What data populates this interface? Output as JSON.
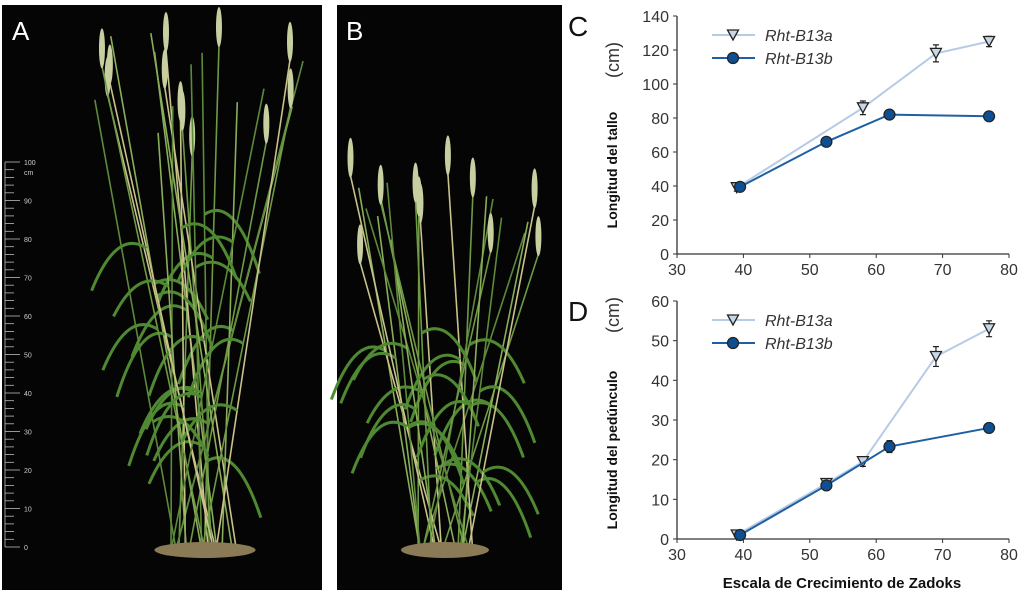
{
  "photos": [
    {
      "label": "A",
      "ruler_unit": "cm",
      "ruler_ticks": [
        0,
        10,
        20,
        30,
        40,
        50,
        60,
        70,
        80,
        90,
        100
      ]
    },
    {
      "label": "B"
    }
  ],
  "colors": {
    "series_a": "#b5cbe6",
    "series_b": "#1f5fa3",
    "marker_b": "#0d4f92",
    "axis": "#333333",
    "photo_bg": "#050505"
  },
  "chart_data": [
    {
      "panel": "C",
      "type": "line",
      "ylabel": "Longitud del tallo",
      "yunit": "(cm)",
      "xlabel": "",
      "xlim": [
        30,
        80
      ],
      "ylim": [
        0,
        140
      ],
      "xticks": [
        30,
        40,
        50,
        60,
        70,
        80
      ],
      "yticks": [
        0,
        20,
        40,
        60,
        80,
        100,
        120,
        140
      ],
      "legend": "top-left",
      "series": [
        {
          "name": "Rht-B13a",
          "marker": "triangle-down",
          "x": [
            39,
            58,
            69,
            77
          ],
          "y": [
            39,
            86,
            118,
            125
          ],
          "err": [
            2,
            4,
            5,
            3
          ]
        },
        {
          "name": "Rht-B13b",
          "marker": "circle",
          "x": [
            39.5,
            52.5,
            62,
            77
          ],
          "y": [
            39.5,
            66,
            82,
            81
          ],
          "err": [
            1,
            1,
            1,
            1
          ]
        }
      ]
    },
    {
      "panel": "D",
      "type": "line",
      "ylabel": "Longitud del pedúnculo",
      "yunit": "(cm)",
      "xlabel": "Escala de Crecimiento de Zadoks",
      "xlim": [
        30,
        80
      ],
      "ylim": [
        0,
        60
      ],
      "xticks": [
        30,
        40,
        50,
        60,
        70,
        80
      ],
      "yticks": [
        0,
        10,
        20,
        30,
        40,
        50,
        60
      ],
      "legend": "top-left",
      "series": [
        {
          "name": "Rht-B13a",
          "marker": "triangle-down",
          "x": [
            39,
            52.5,
            58,
            69,
            77
          ],
          "y": [
            1,
            14,
            19.5,
            46,
            53
          ],
          "err": [
            0.3,
            0.5,
            1.2,
            2.5,
            2
          ]
        },
        {
          "name": "Rht-B13b",
          "marker": "circle",
          "x": [
            39.5,
            52.5,
            62,
            77
          ],
          "y": [
            1,
            13.5,
            23.3,
            28
          ],
          "err": [
            0.3,
            0.8,
            1.5,
            1.2
          ]
        }
      ]
    }
  ]
}
